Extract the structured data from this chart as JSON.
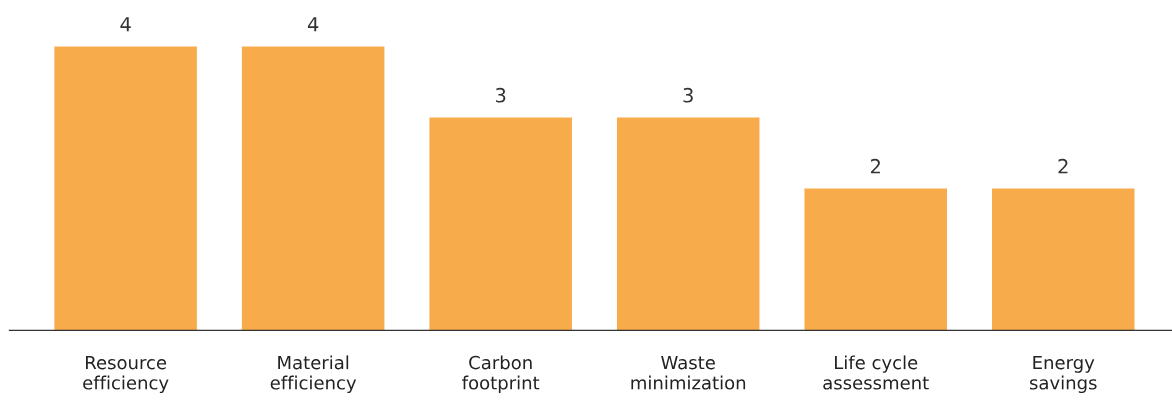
{
  "chart_data": {
    "type": "bar",
    "categories": [
      "Resource\nefficiency",
      "Material\nefficiency",
      "Carbon\nfootprint",
      "Waste\nminimization",
      "Life cycle\nassessment",
      "Energy\nsavings"
    ],
    "values": [
      4,
      4,
      3,
      3,
      2,
      2
    ],
    "color": "#f7ab4a",
    "data_labels": true,
    "grid": false,
    "legend": false
  }
}
